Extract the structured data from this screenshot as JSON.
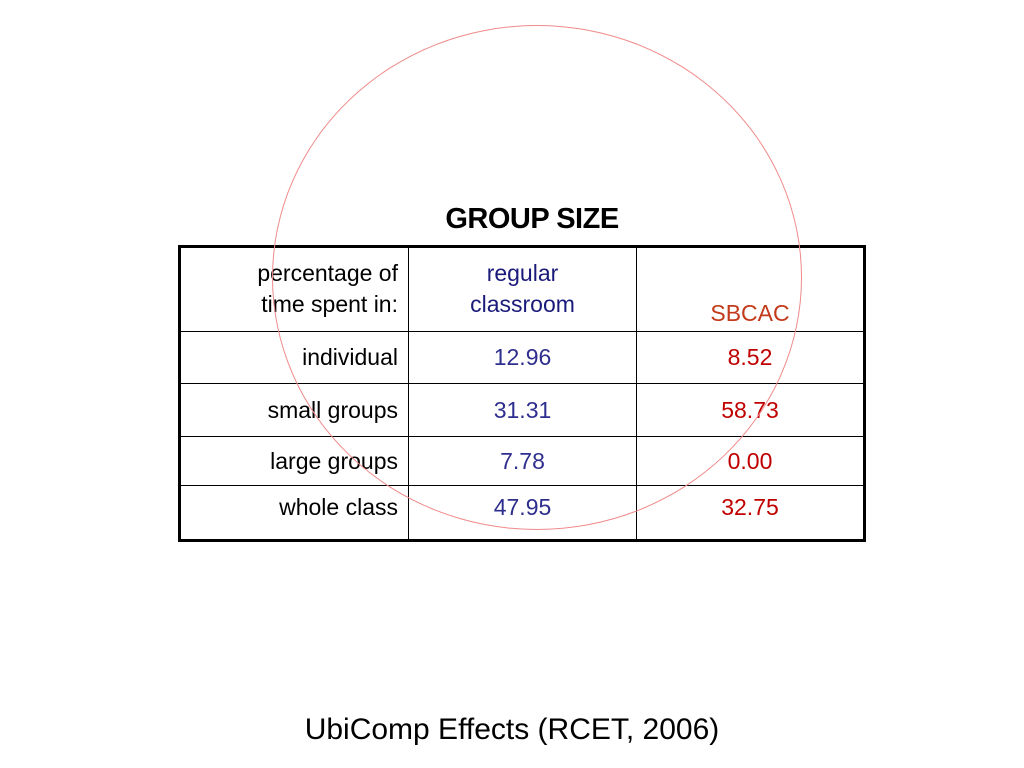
{
  "slide": {
    "title": "GROUP SIZE",
    "footer": "UbiComp Effects (RCET, 2006)"
  },
  "table": {
    "header": {
      "label_line1": "percentage of",
      "label_line2": "time spent in:",
      "col1_line1": "regular",
      "col1_line2": "classroom",
      "col2": "SBCAC"
    },
    "rows": [
      {
        "label": "individual",
        "regular": "12.96",
        "sbcac": "8.52"
      },
      {
        "label": "small groups",
        "regular": "31.31",
        "sbcac": "58.73"
      },
      {
        "label": "large groups",
        "regular": "7.78",
        "sbcac": "0.00"
      },
      {
        "label": "whole class",
        "regular": "47.95",
        "sbcac": "32.75"
      }
    ]
  },
  "colors": {
    "regular_column": "#2e2e8e",
    "sbcac_column": "#c00000",
    "circle_outline": "#f08a8a"
  }
}
